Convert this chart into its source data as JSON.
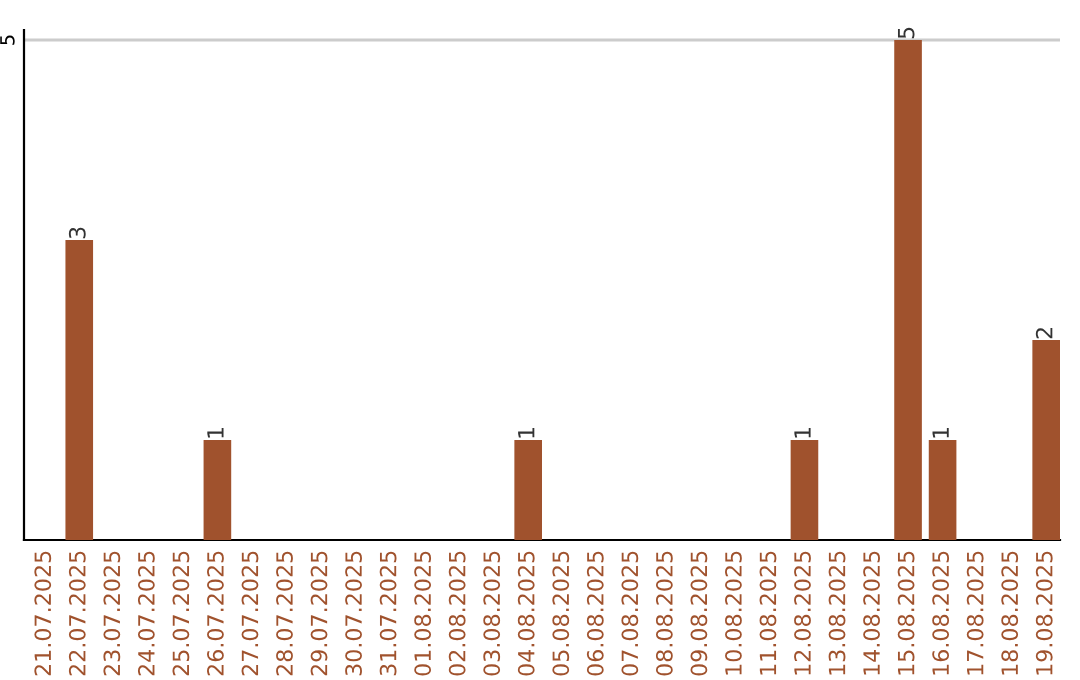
{
  "chart_data": {
    "type": "bar",
    "categories": [
      "21.07.2025",
      "22.07.2025",
      "23.07.2025",
      "24.07.2025",
      "25.07.2025",
      "26.07.2025",
      "27.07.2025",
      "28.07.2025",
      "29.07.2025",
      "30.07.2025",
      "31.07.2025",
      "01.08.2025",
      "02.08.2025",
      "03.08.2025",
      "04.08.2025",
      "05.08.2025",
      "06.08.2025",
      "07.08.2025",
      "08.08.2025",
      "09.08.2025",
      "10.08.2025",
      "11.08.2025",
      "12.08.2025",
      "13.08.2025",
      "14.08.2025",
      "15.08.2025",
      "16.08.2025",
      "17.08.2025",
      "18.08.2025",
      "19.08.2025"
    ],
    "values": [
      0,
      3,
      0,
      0,
      0,
      1,
      0,
      0,
      0,
      0,
      0,
      0,
      0,
      0,
      1,
      0,
      0,
      0,
      0,
      0,
      0,
      0,
      1,
      0,
      0,
      5,
      1,
      0,
      0,
      2
    ],
    "value_labels": [
      null,
      "3",
      null,
      null,
      null,
      "1",
      null,
      null,
      null,
      null,
      null,
      null,
      null,
      null,
      "1",
      null,
      null,
      null,
      null,
      null,
      null,
      null,
      "1",
      null,
      null,
      "5",
      "1",
      null,
      null,
      "2"
    ],
    "color": "#a0522d",
    "ylim": [
      0,
      5.1
    ],
    "yticks": [
      5
    ],
    "grid": "y"
  }
}
